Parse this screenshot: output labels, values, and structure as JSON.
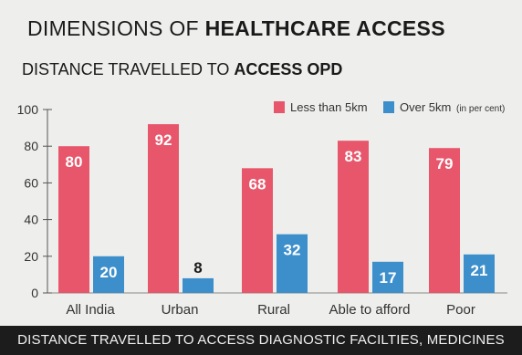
{
  "title": {
    "prefix": "DIMENSIONS OF ",
    "emphasis": "HEALTHCARE ACCESS"
  },
  "subtitle": {
    "prefix": "DISTANCE TRAVELLED TO ",
    "emphasis": "ACCESS OPD"
  },
  "footer_text": "DISTANCE TRAVELLED TO ACCESS DIAGNOSTIC FACILTIES, MEDICINES",
  "chart_data": {
    "type": "bar",
    "categories": [
      "All India",
      "Urban",
      "Rural",
      "Able to afford",
      "Poor"
    ],
    "series": [
      {
        "name": "Less than 5km",
        "color": "#e8566b",
        "values": [
          80,
          92,
          68,
          83,
          79
        ]
      },
      {
        "name": "Over 5km",
        "color": "#3d8fcb",
        "values": [
          20,
          8,
          32,
          17,
          21
        ]
      }
    ],
    "unit_note": "(in per cent)",
    "ylim": [
      0,
      100
    ],
    "yticks": [
      0,
      20,
      40,
      60,
      80,
      100
    ],
    "grid": false,
    "legend_position": "top-right"
  }
}
